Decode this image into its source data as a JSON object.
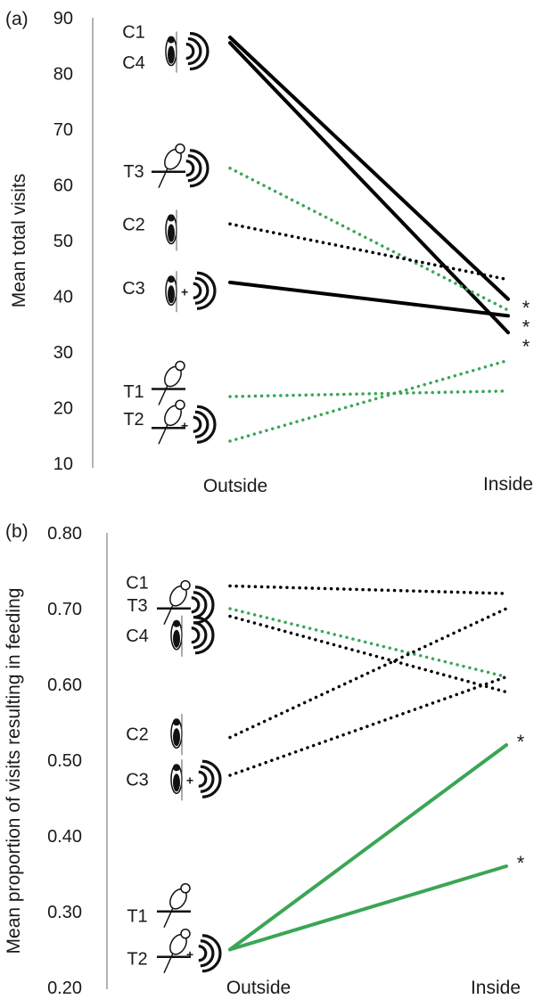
{
  "chart_data": [
    {
      "type": "line",
      "panel_label": "(a)",
      "ylabel": "Mean total visits",
      "xlabel": "",
      "categories": [
        "Outside",
        "Inside"
      ],
      "ylim": [
        10,
        90
      ],
      "yticks": [
        "90",
        "80",
        "70",
        "60",
        "50",
        "40",
        "30",
        "20",
        "10"
      ],
      "tick_values": [
        90,
        80,
        70,
        60,
        50,
        40,
        30,
        20,
        10
      ],
      "series": [
        {
          "label": "C1",
          "values": [
            86.5,
            39.5
          ],
          "color": "#000000",
          "style": "solid",
          "significance": "*"
        },
        {
          "label": "C4",
          "values": [
            85.5,
            33.5
          ],
          "color": "#000000",
          "style": "solid",
          "significance": "*"
        },
        {
          "label": "T3",
          "values": [
            63.0,
            37.5
          ],
          "color": "#3aa655",
          "style": "dotted"
        },
        {
          "label": "C2",
          "values": [
            53.0,
            43.0
          ],
          "color": "#000000",
          "style": "dotted"
        },
        {
          "label": "C3",
          "values": [
            42.5,
            36.5
          ],
          "color": "#000000",
          "style": "solid",
          "significance": "*"
        },
        {
          "label": "T1",
          "values": [
            22.0,
            23.0
          ],
          "color": "#3aa655",
          "style": "dotted"
        },
        {
          "label": "T2",
          "values": [
            14.0,
            28.5
          ],
          "color": "#3aa655",
          "style": "dotted"
        }
      ],
      "significance_markers": [
        "*",
        "*",
        "*"
      ],
      "significance_values": [
        39.0,
        35.5,
        32.0
      ]
    },
    {
      "type": "line",
      "panel_label": "(b)",
      "ylabel": "Mean proportion of visits resulting in feeding",
      "xlabel": "",
      "categories": [
        "Outside",
        "Inside"
      ],
      "ylim": [
        0.2,
        0.8
      ],
      "yticks": [
        "0.80",
        "0.70",
        "0.60",
        "0.50",
        "0.40",
        "0.30",
        "0.20"
      ],
      "tick_values": [
        0.8,
        0.7,
        0.6,
        0.5,
        0.4,
        0.3,
        0.2
      ],
      "series": [
        {
          "label": "C1",
          "values": [
            0.73,
            0.72
          ],
          "color": "#000000",
          "style": "dotted"
        },
        {
          "label": "T3",
          "values": [
            0.7,
            0.61
          ],
          "color": "#3aa655",
          "style": "dotted"
        },
        {
          "label": "C4",
          "values": [
            0.69,
            0.59
          ],
          "color": "#000000",
          "style": "dotted"
        },
        {
          "label": "C2",
          "values": [
            0.53,
            0.7
          ],
          "color": "#000000",
          "style": "dotted"
        },
        {
          "label": "C3",
          "values": [
            0.48,
            0.61
          ],
          "color": "#000000",
          "style": "dotted"
        },
        {
          "label": "T1",
          "values": [
            0.25,
            0.52
          ],
          "color": "#3aa655",
          "style": "solid",
          "significance": "*"
        },
        {
          "label": "T2",
          "values": [
            0.25,
            0.36
          ],
          "color": "#3aa655",
          "style": "solid",
          "significance": "*"
        }
      ],
      "series_labels": [
        {
          "text": "C1",
          "value": 0.735
        },
        {
          "text": "T3",
          "value": 0.705
        },
        {
          "text": "C4",
          "value": 0.665
        },
        {
          "text": "C2",
          "value": 0.535
        },
        {
          "text": "C3",
          "value": 0.475
        },
        {
          "text": "T1",
          "value": 0.295
        },
        {
          "text": "T2",
          "value": 0.238
        }
      ]
    }
  ],
  "panel_a_series_labels": [
    {
      "text": "C1",
      "value": 87.5
    },
    {
      "text": "C4",
      "value": 82.0
    },
    {
      "text": "T3",
      "value": 62.5
    },
    {
      "text": "C2",
      "value": 53.0
    },
    {
      "text": "C3",
      "value": 41.5
    },
    {
      "text": "T1",
      "value": 23.0
    },
    {
      "text": "T2",
      "value": 18.0
    }
  ],
  "icons": [
    {
      "panel": 0,
      "name": "woodpecker-speaker-icon",
      "value": 84.0
    },
    {
      "panel": 0,
      "name": "tit-speaker-icon",
      "value": 63.0
    },
    {
      "panel": 0,
      "name": "woodpecker-icon",
      "value": 52.0
    },
    {
      "panel": 0,
      "name": "woodpecker-plus-speaker-icon",
      "value": 41.0
    },
    {
      "panel": 0,
      "name": "tit-icon",
      "value": 24.0
    },
    {
      "panel": 0,
      "name": "tit-plus-speaker-icon",
      "value": 17.0
    },
    {
      "panel": 1,
      "name": "tit-speaker-icon",
      "value": 0.705
    },
    {
      "panel": 1,
      "name": "woodpecker-speaker-icon",
      "value": 0.665
    },
    {
      "panel": 1,
      "name": "woodpecker-icon",
      "value": 0.535
    },
    {
      "panel": 1,
      "name": "woodpecker-plus-speaker-icon",
      "value": 0.475
    },
    {
      "panel": 1,
      "name": "tit-icon",
      "value": 0.305
    },
    {
      "panel": 1,
      "name": "tit-plus-speaker-icon",
      "value": 0.245
    }
  ]
}
